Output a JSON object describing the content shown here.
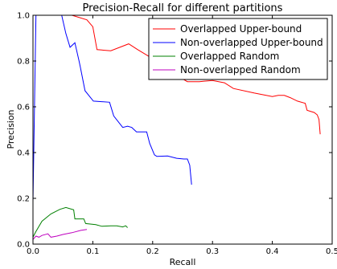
{
  "chart_data": {
    "type": "line",
    "title": "Precision-Recall for different partitions",
    "xlabel": "Recall",
    "ylabel": "Precision",
    "xlim": [
      0.0,
      0.5
    ],
    "ylim": [
      0.0,
      1.0
    ],
    "xticks": [
      "0.0",
      "0.1",
      "0.2",
      "0.3",
      "0.4",
      "0.5"
    ],
    "yticks": [
      "0.0",
      "0.2",
      "0.4",
      "0.6",
      "0.8",
      "1.0"
    ],
    "grid": false,
    "legend_position": "top-right",
    "series": [
      {
        "name": "Overlapped Upper-bound",
        "color": "#ff0000",
        "points": [
          [
            0.065,
            1.0
          ],
          [
            0.09,
            0.98
          ],
          [
            0.1,
            0.95
          ],
          [
            0.107,
            0.85
          ],
          [
            0.13,
            0.845
          ],
          [
            0.16,
            0.875
          ],
          [
            0.175,
            0.85
          ],
          [
            0.2,
            0.81
          ],
          [
            0.22,
            0.79
          ],
          [
            0.235,
            0.81
          ],
          [
            0.24,
            0.79
          ],
          [
            0.245,
            0.73
          ],
          [
            0.258,
            0.71
          ],
          [
            0.278,
            0.71
          ],
          [
            0.3,
            0.715
          ],
          [
            0.32,
            0.705
          ],
          [
            0.335,
            0.68
          ],
          [
            0.37,
            0.66
          ],
          [
            0.4,
            0.645
          ],
          [
            0.41,
            0.65
          ],
          [
            0.42,
            0.65
          ],
          [
            0.43,
            0.64
          ],
          [
            0.442,
            0.625
          ],
          [
            0.455,
            0.615
          ],
          [
            0.458,
            0.585
          ],
          [
            0.47,
            0.575
          ],
          [
            0.475,
            0.565
          ],
          [
            0.478,
            0.545
          ],
          [
            0.48,
            0.48
          ]
        ]
      },
      {
        "name": "Non-overlapped Upper-bound",
        "color": "#0000ff",
        "points": [
          [
            0.0,
            0.185
          ],
          [
            0.005,
            1.0
          ],
          [
            0.048,
            1.0
          ],
          [
            0.055,
            0.92
          ],
          [
            0.062,
            0.86
          ],
          [
            0.07,
            0.88
          ],
          [
            0.077,
            0.8
          ],
          [
            0.079,
            0.775
          ],
          [
            0.087,
            0.67
          ],
          [
            0.101,
            0.625
          ],
          [
            0.128,
            0.62
          ],
          [
            0.135,
            0.56
          ],
          [
            0.15,
            0.51
          ],
          [
            0.158,
            0.515
          ],
          [
            0.165,
            0.51
          ],
          [
            0.173,
            0.49
          ],
          [
            0.19,
            0.49
          ],
          [
            0.195,
            0.44
          ],
          [
            0.203,
            0.39
          ],
          [
            0.207,
            0.383
          ],
          [
            0.225,
            0.385
          ],
          [
            0.24,
            0.375
          ],
          [
            0.252,
            0.372
          ],
          [
            0.258,
            0.372
          ],
          [
            0.262,
            0.345
          ],
          [
            0.265,
            0.26
          ]
        ]
      },
      {
        "name": "Overlapped Random",
        "color": "#008000",
        "points": [
          [
            0.0,
            0.03
          ],
          [
            0.005,
            0.055
          ],
          [
            0.015,
            0.1
          ],
          [
            0.03,
            0.132
          ],
          [
            0.045,
            0.152
          ],
          [
            0.055,
            0.16
          ],
          [
            0.068,
            0.15
          ],
          [
            0.07,
            0.11
          ],
          [
            0.085,
            0.11
          ],
          [
            0.088,
            0.09
          ],
          [
            0.105,
            0.085
          ],
          [
            0.115,
            0.078
          ],
          [
            0.13,
            0.08
          ],
          [
            0.14,
            0.08
          ],
          [
            0.15,
            0.075
          ],
          [
            0.155,
            0.08
          ],
          [
            0.158,
            0.072
          ]
        ]
      },
      {
        "name": "Non-overlapped Random",
        "color": "#bf00bf",
        "points": [
          [
            0.0,
            0.02
          ],
          [
            0.005,
            0.035
          ],
          [
            0.01,
            0.03
          ],
          [
            0.015,
            0.038
          ],
          [
            0.025,
            0.045
          ],
          [
            0.03,
            0.03
          ],
          [
            0.04,
            0.035
          ],
          [
            0.05,
            0.042
          ],
          [
            0.065,
            0.05
          ],
          [
            0.08,
            0.06
          ],
          [
            0.09,
            0.064
          ]
        ]
      }
    ]
  }
}
